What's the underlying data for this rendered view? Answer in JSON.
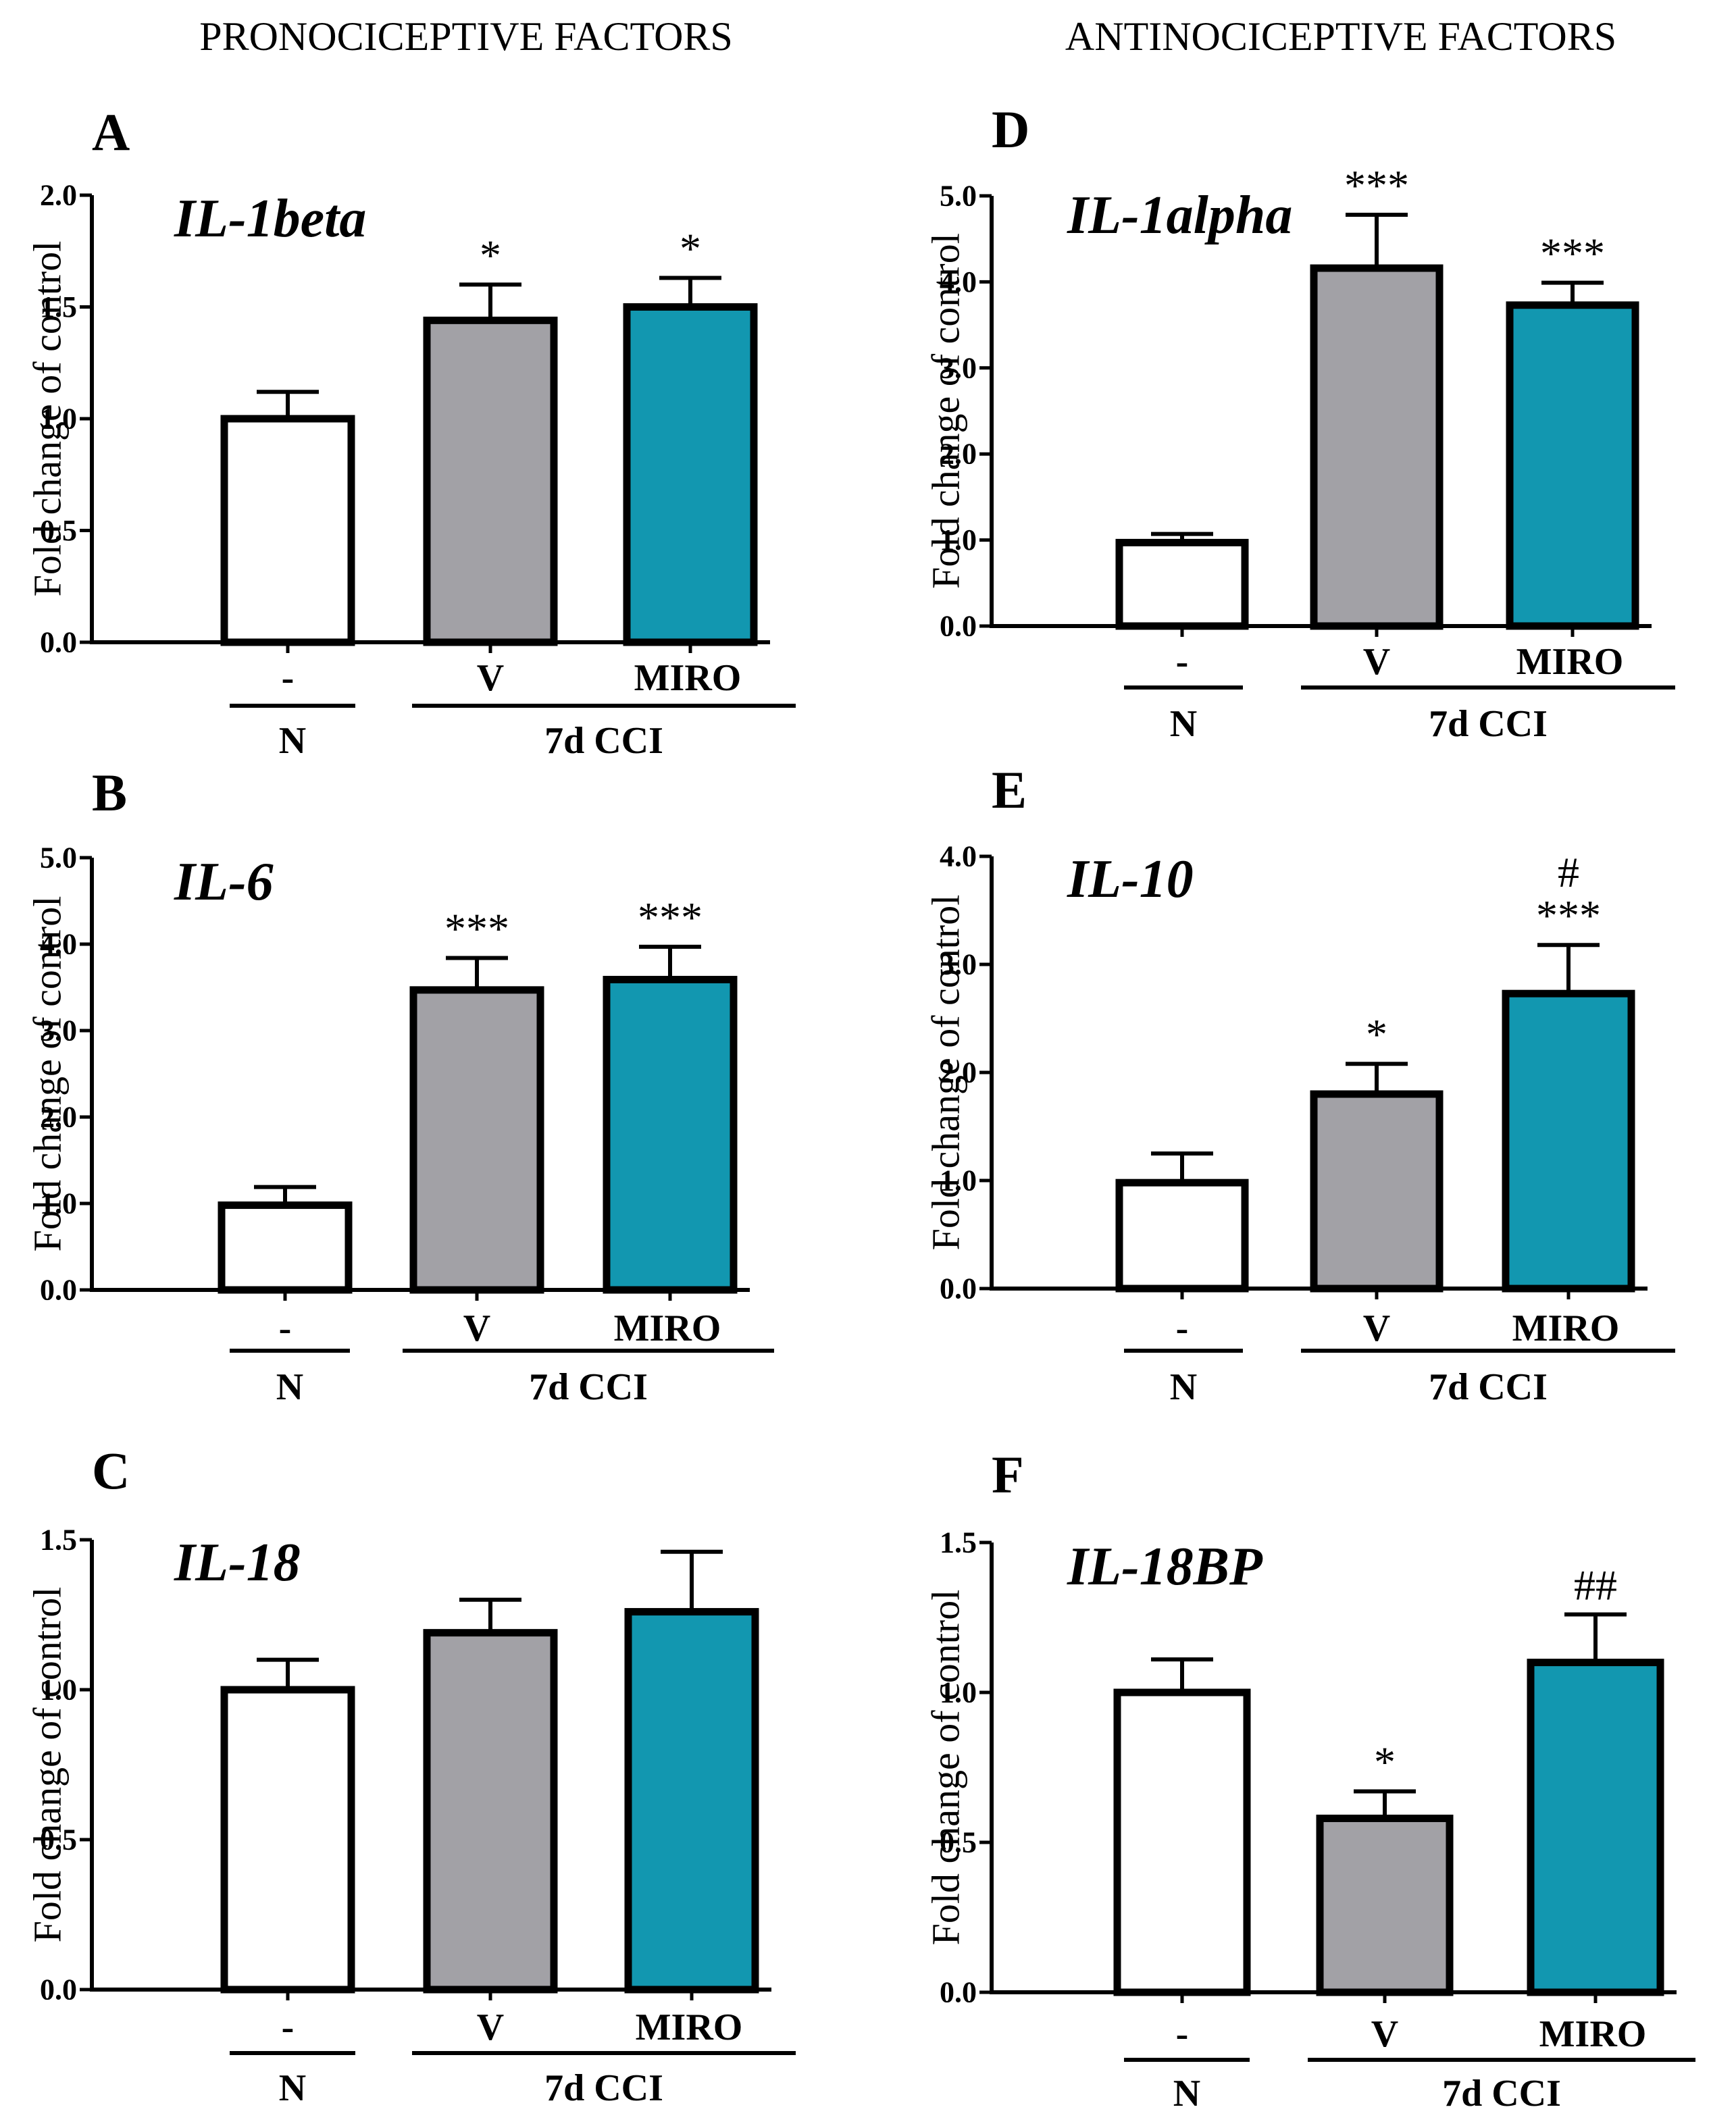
{
  "column_headings": [
    "PRONOCICEPTIVE FACTORS",
    "ANTINOCICEPTIVE FACTORS"
  ],
  "colors": {
    "n": "#ffffff",
    "v": "#a2a1a6",
    "miro": "#1297b0",
    "ink": "#000000"
  },
  "chart_data": [
    {
      "panel": "A",
      "type": "bar",
      "title": "IL-1beta",
      "ylabel": "Fold change of control",
      "ylim": [
        0,
        2.0
      ],
      "ticks": [
        "0.0",
        "0.5",
        "1.0",
        "1.5",
        "2.0"
      ],
      "tick_values": [
        0,
        0.5,
        1.0,
        1.5,
        2.0
      ],
      "categories": [
        "-",
        "V",
        "MIRO"
      ],
      "groups": [
        {
          "label": "N"
        },
        {
          "label": "7d CCI"
        }
      ],
      "values": [
        1.0,
        1.44,
        1.5
      ],
      "errors": [
        0.12,
        0.16,
        0.13
      ],
      "annotations": [
        "",
        "*",
        "*"
      ]
    },
    {
      "panel": "B",
      "type": "bar",
      "title": "IL-6",
      "ylabel": "Fold change of control",
      "ylim": [
        0,
        5.0
      ],
      "ticks": [
        "0.0",
        "1.0",
        "2.0",
        "3.0",
        "4.0",
        "5.0"
      ],
      "tick_values": [
        0,
        1,
        2,
        3,
        4,
        5
      ],
      "categories": [
        "-",
        "V",
        "MIRO"
      ],
      "groups": [
        {
          "label": "N"
        },
        {
          "label": "7d CCI"
        }
      ],
      "values": [
        0.98,
        3.47,
        3.59
      ],
      "errors": [
        0.21,
        0.37,
        0.38
      ],
      "annotations": [
        "",
        "***",
        "***"
      ]
    },
    {
      "panel": "C",
      "type": "bar",
      "title": "IL-18",
      "ylabel": "Fold change of control",
      "ylim": [
        0,
        1.5
      ],
      "ticks": [
        "0.0",
        "0.5",
        "1.0",
        "1.5"
      ],
      "tick_values": [
        0,
        0.5,
        1.0,
        1.5
      ],
      "categories": [
        "-",
        "V",
        "MIRO"
      ],
      "groups": [
        {
          "label": "N"
        },
        {
          "label": "7d CCI"
        }
      ],
      "values": [
        1.0,
        1.19,
        1.26
      ],
      "errors": [
        0.1,
        0.11,
        0.2
      ],
      "annotations": [
        "",
        "",
        ""
      ]
    },
    {
      "panel": "D",
      "type": "bar",
      "title": "IL-1alpha",
      "ylabel": "Fold change of control",
      "ylim": [
        0,
        5.0
      ],
      "ticks": [
        "0.0",
        "1.0",
        "2.0",
        "3.0",
        "4.0",
        "5.0"
      ],
      "tick_values": [
        0,
        1,
        2,
        3,
        4,
        5
      ],
      "categories": [
        "-",
        "V",
        "MIRO"
      ],
      "groups": [
        {
          "label": "N"
        },
        {
          "label": "7d CCI"
        }
      ],
      "values": [
        0.97,
        4.16,
        3.73
      ],
      "errors": [
        0.1,
        0.62,
        0.26
      ],
      "annotations": [
        "",
        "***",
        "***"
      ]
    },
    {
      "panel": "E",
      "type": "bar",
      "title": "IL-10",
      "ylabel": "Fold change of control",
      "ylim": [
        0,
        4.0
      ],
      "ticks": [
        "0.0",
        "1.0",
        "2.0",
        "3.0",
        "4.0"
      ],
      "tick_values": [
        0,
        1,
        2,
        3,
        4
      ],
      "categories": [
        "-",
        "V",
        "MIRO"
      ],
      "groups": [
        {
          "label": "N"
        },
        {
          "label": "7d CCI"
        }
      ],
      "values": [
        0.98,
        1.8,
        2.73
      ],
      "errors": [
        0.27,
        0.28,
        0.45
      ],
      "annotations": [
        "",
        "*",
        "***"
      ],
      "annotations2": [
        "",
        "",
        "#"
      ]
    },
    {
      "panel": "F",
      "type": "bar",
      "title": "IL-18BP",
      "ylabel": "Fold change of control",
      "ylim": [
        0,
        1.5
      ],
      "ticks": [
        "0.0",
        "0.5",
        "1.0",
        "1.5"
      ],
      "tick_values": [
        0,
        0.5,
        1.0,
        1.5
      ],
      "categories": [
        "-",
        "V",
        "MIRO"
      ],
      "groups": [
        {
          "label": "N"
        },
        {
          "label": "7d CCI"
        }
      ],
      "values": [
        1.0,
        0.58,
        1.1
      ],
      "errors": [
        0.11,
        0.09,
        0.16
      ],
      "annotations": [
        "",
        "*",
        "##"
      ]
    }
  ]
}
